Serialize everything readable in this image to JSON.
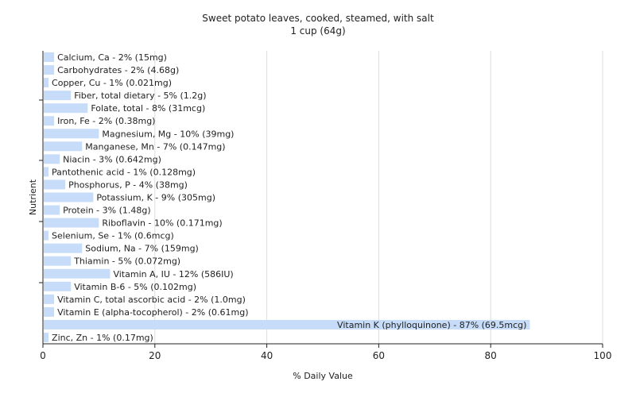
{
  "chart_data": {
    "type": "bar",
    "orientation": "horizontal",
    "title": "Sweet potato leaves, cooked, steamed, with salt",
    "subtitle": "1 cup (64g)",
    "xlabel": "% Daily Value",
    "ylabel": "Nutrient",
    "xlim": [
      0,
      100
    ],
    "xticks": [
      0,
      20,
      40,
      60,
      80,
      100
    ],
    "grid": true,
    "bar_color": "#c6dcf8",
    "categories": [
      "Calcium, Ca",
      "Carbohydrates",
      "Copper, Cu",
      "Fiber, total dietary",
      "Folate, total",
      "Iron, Fe",
      "Magnesium, Mg",
      "Manganese, Mn",
      "Niacin",
      "Pantothenic acid",
      "Phosphorus, P",
      "Potassium, K",
      "Protein",
      "Riboflavin",
      "Selenium, Se",
      "Sodium, Na",
      "Thiamin",
      "Vitamin A, IU",
      "Vitamin B-6",
      "Vitamin C, total ascorbic acid",
      "Vitamin E (alpha-tocopherol)",
      "Vitamin K (phylloquinone)",
      "Zinc, Zn"
    ],
    "values": [
      2,
      2,
      1,
      5,
      8,
      2,
      10,
      7,
      3,
      1,
      4,
      9,
      3,
      10,
      1,
      7,
      5,
      12,
      5,
      2,
      2,
      87,
      1
    ],
    "labels": [
      "Calcium, Ca - 2% (15mg)",
      "Carbohydrates - 2% (4.68g)",
      "Copper, Cu - 1% (0.021mg)",
      "Fiber, total dietary - 5% (1.2g)",
      "Folate, total - 8% (31mcg)",
      "Iron, Fe - 2% (0.38mg)",
      "Magnesium, Mg - 10% (39mg)",
      "Manganese, Mn - 7% (0.147mg)",
      "Niacin - 3% (0.642mg)",
      "Pantothenic acid - 1% (0.128mg)",
      "Phosphorus, P - 4% (38mg)",
      "Potassium, K - 9% (305mg)",
      "Protein - 3% (1.48g)",
      "Riboflavin - 10% (0.171mg)",
      "Selenium, Se - 1% (0.6mcg)",
      "Sodium, Na - 7% (159mg)",
      "Thiamin - 5% (0.072mg)",
      "Vitamin A, IU - 12% (586IU)",
      "Vitamin B-6 - 5% (0.102mg)",
      "Vitamin C, total ascorbic acid - 2% (1.0mg)",
      "Vitamin E (alpha-tocopherol) - 2% (0.61mg)",
      "Vitamin K (phylloquinone) - 87% (69.5mcg)",
      "Zinc, Zn - 1% (0.17mg)"
    ]
  }
}
